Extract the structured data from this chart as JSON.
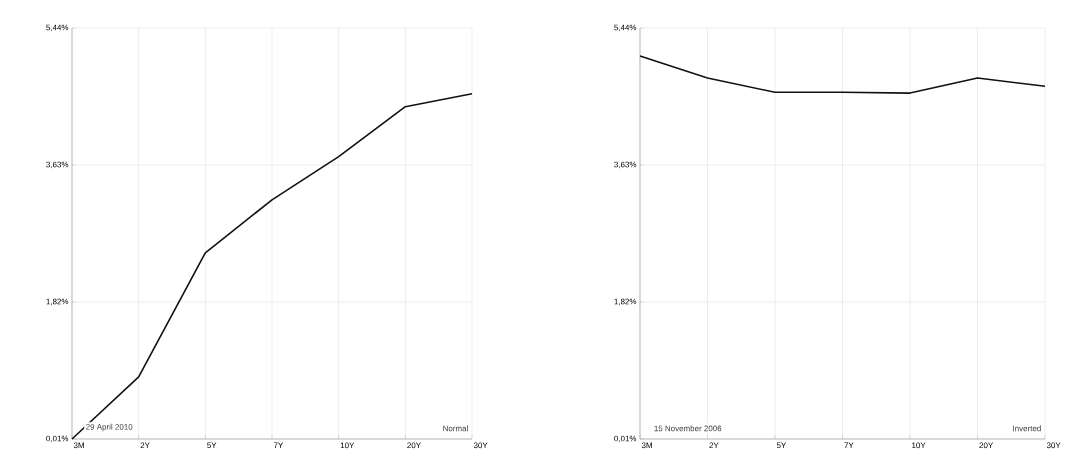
{
  "chart_data": [
    {
      "type": "line",
      "categories": [
        "3M",
        "2Y",
        "5Y",
        "7Y",
        "10Y",
        "20Y",
        "30Y"
      ],
      "values": [
        0.01,
        0.83,
        2.47,
        3.17,
        3.74,
        4.4,
        4.57
      ],
      "color": "#111111",
      "ylim": [
        0.01,
        5.44
      ],
      "yticks": [
        {
          "value": 0.01,
          "label": "0,01%"
        },
        {
          "value": 1.82,
          "label": "1,82%"
        },
        {
          "value": 3.63,
          "label": "3,63%"
        },
        {
          "value": 5.44,
          "label": "5,44%"
        }
      ],
      "grid": true,
      "annotations": [
        "29 April 2010",
        "Normal"
      ]
    },
    {
      "type": "line",
      "categories": [
        "3M",
        "2Y",
        "5Y",
        "7Y",
        "10Y",
        "20Y",
        "30Y"
      ],
      "values": [
        5.07,
        4.78,
        4.59,
        4.59,
        4.58,
        4.78,
        4.67
      ],
      "color": "#111111",
      "ylim": [
        0.01,
        5.44
      ],
      "yticks": [
        {
          "value": 0.01,
          "label": "0,01%"
        },
        {
          "value": 1.82,
          "label": "1,82%"
        },
        {
          "value": 3.63,
          "label": "3,63%"
        },
        {
          "value": 5.44,
          "label": "5,44%"
        }
      ],
      "grid": true,
      "annotations": [
        "15 November 2006",
        "Inverted"
      ]
    }
  ]
}
